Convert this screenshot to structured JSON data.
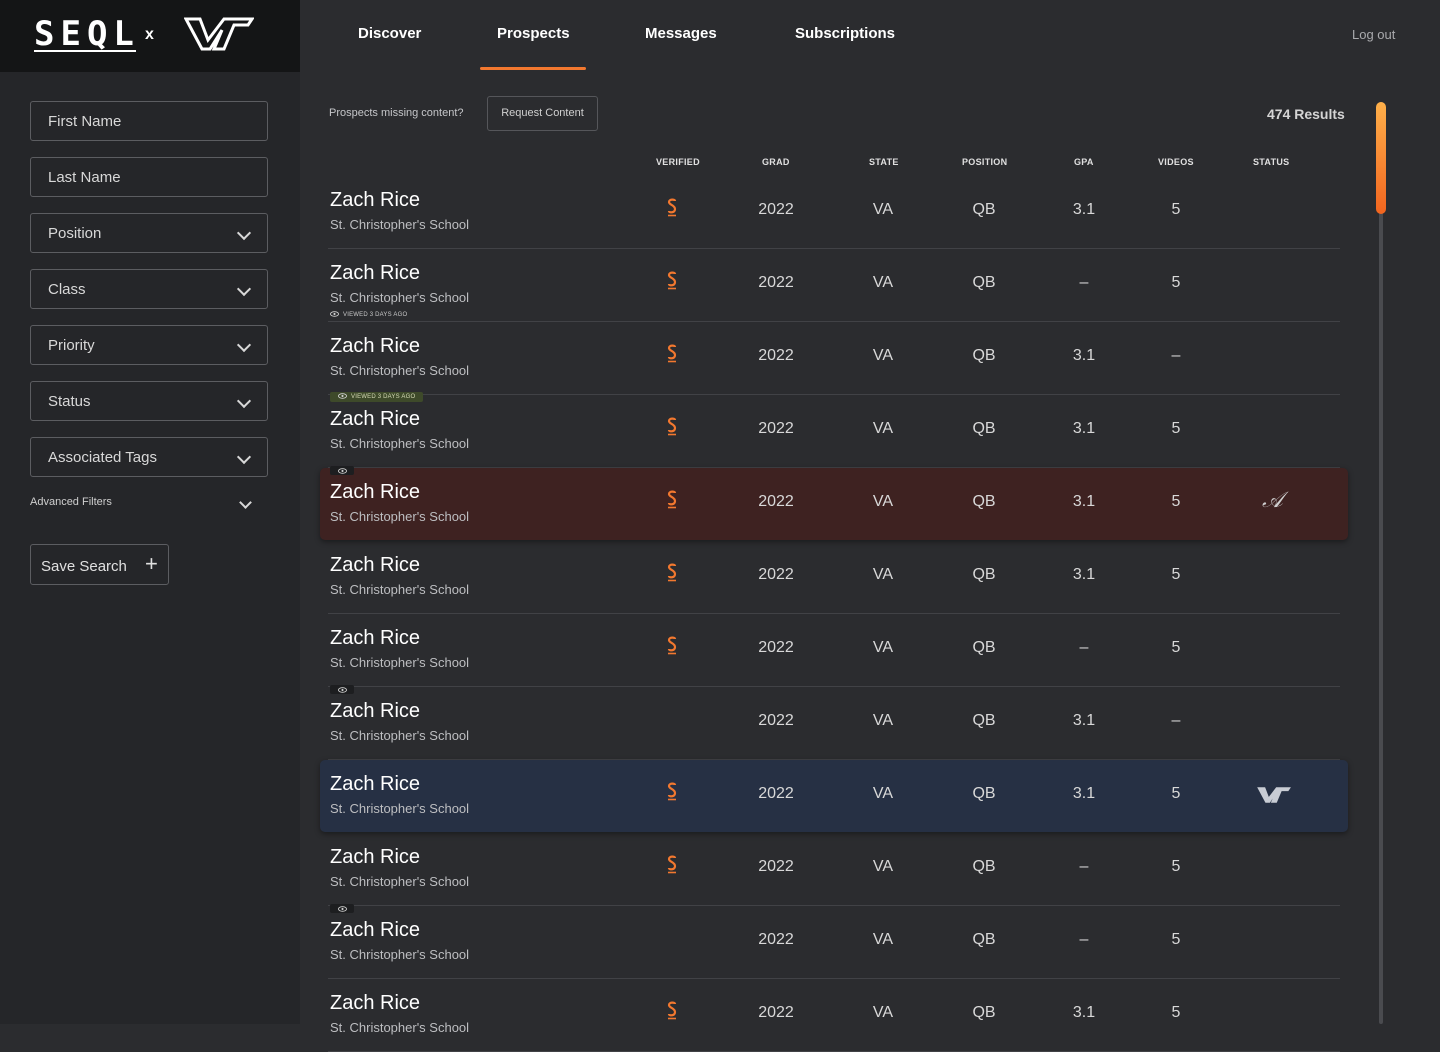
{
  "brand": {
    "logo_text": "SEQL",
    "separator": "x",
    "partner_logo": "vt-logo"
  },
  "nav": {
    "tabs": [
      {
        "label": "Discover"
      },
      {
        "label": "Prospects"
      },
      {
        "label": "Messages"
      },
      {
        "label": "Subscriptions"
      }
    ],
    "active_tab": "Prospects",
    "logout_label": "Log out"
  },
  "filters": {
    "first_name_placeholder": "First Name",
    "last_name_placeholder": "Last Name",
    "dropdowns": [
      {
        "label": "Position"
      },
      {
        "label": "Class"
      },
      {
        "label": "Priority"
      },
      {
        "label": "Status"
      },
      {
        "label": "Associated Tags"
      }
    ],
    "advanced_label": "Advanced Filters",
    "save_search_label": "Save Search"
  },
  "toolbar": {
    "missing_text": "Prospects missing content?",
    "request_label": "Request Content",
    "results_count": "474 Results"
  },
  "columns": {
    "verified": "VERIFIED",
    "grad": "GRAD",
    "state": "STATE",
    "position": "POSITION",
    "gpa": "GPA",
    "videos": "VIDEOS",
    "status": "STATUS"
  },
  "colors": {
    "accent": "#f2782f",
    "highlight_red": "#3e2221",
    "highlight_blue": "#263044"
  },
  "rows": [
    {
      "name": "Zach Rice",
      "school": "St. Christopher's School",
      "verified": true,
      "grad": "2022",
      "state": "VA",
      "position": "QB",
      "gpa": "3.1",
      "videos": "5",
      "status_icon": "",
      "viewed": ""
    },
    {
      "name": "Zach Rice",
      "school": "St. Christopher's School",
      "verified": true,
      "grad": "2022",
      "state": "VA",
      "position": "QB",
      "gpa": "–",
      "videos": "5",
      "status_icon": "",
      "viewed": "VIEWED 3 DAYS AGO"
    },
    {
      "name": "Zach Rice",
      "school": "St. Christopher's School",
      "verified": true,
      "grad": "2022",
      "state": "VA",
      "position": "QB",
      "gpa": "3.1",
      "videos": "–",
      "status_icon": "",
      "viewed": ""
    },
    {
      "name": "Zach Rice",
      "school": "St. Christopher's School",
      "verified": true,
      "grad": "2022",
      "state": "VA",
      "position": "QB",
      "gpa": "3.1",
      "videos": "5",
      "status_icon": "",
      "viewed_pill": "VIEWED 3 DAYS AGO"
    },
    {
      "name": "Zach Rice",
      "school": "St. Christopher's School",
      "verified": true,
      "grad": "2022",
      "state": "VA",
      "position": "QB",
      "gpa": "3.1",
      "videos": "5",
      "status_icon": "alabama-script-a-icon",
      "eye_badge": true,
      "highlight": "red"
    },
    {
      "name": "Zach Rice",
      "school": "St. Christopher's School",
      "verified": true,
      "grad": "2022",
      "state": "VA",
      "position": "QB",
      "gpa": "3.1",
      "videos": "5",
      "status_icon": ""
    },
    {
      "name": "Zach Rice",
      "school": "St. Christopher's School",
      "verified": true,
      "grad": "2022",
      "state": "VA",
      "position": "QB",
      "gpa": "–",
      "videos": "5",
      "status_icon": ""
    },
    {
      "name": "Zach Rice",
      "school": "St. Christopher's School",
      "verified": false,
      "grad": "2022",
      "state": "VA",
      "position": "QB",
      "gpa": "3.1",
      "videos": "–",
      "status_icon": "",
      "eye_badge": true
    },
    {
      "name": "Zach Rice",
      "school": "St. Christopher's School",
      "verified": true,
      "grad": "2022",
      "state": "VA",
      "position": "QB",
      "gpa": "3.1",
      "videos": "5",
      "status_icon": "vt-logo-icon",
      "highlight": "blue"
    },
    {
      "name": "Zach Rice",
      "school": "St. Christopher's School",
      "verified": true,
      "grad": "2022",
      "state": "VA",
      "position": "QB",
      "gpa": "–",
      "videos": "5",
      "status_icon": ""
    },
    {
      "name": "Zach Rice",
      "school": "St. Christopher's School",
      "verified": false,
      "grad": "2022",
      "state": "VA",
      "position": "QB",
      "gpa": "–",
      "videos": "5",
      "status_icon": "",
      "eye_badge": true
    },
    {
      "name": "Zach Rice",
      "school": "St. Christopher's School",
      "verified": true,
      "grad": "2022",
      "state": "VA",
      "position": "QB",
      "gpa": "3.1",
      "videos": "5",
      "status_icon": ""
    }
  ]
}
